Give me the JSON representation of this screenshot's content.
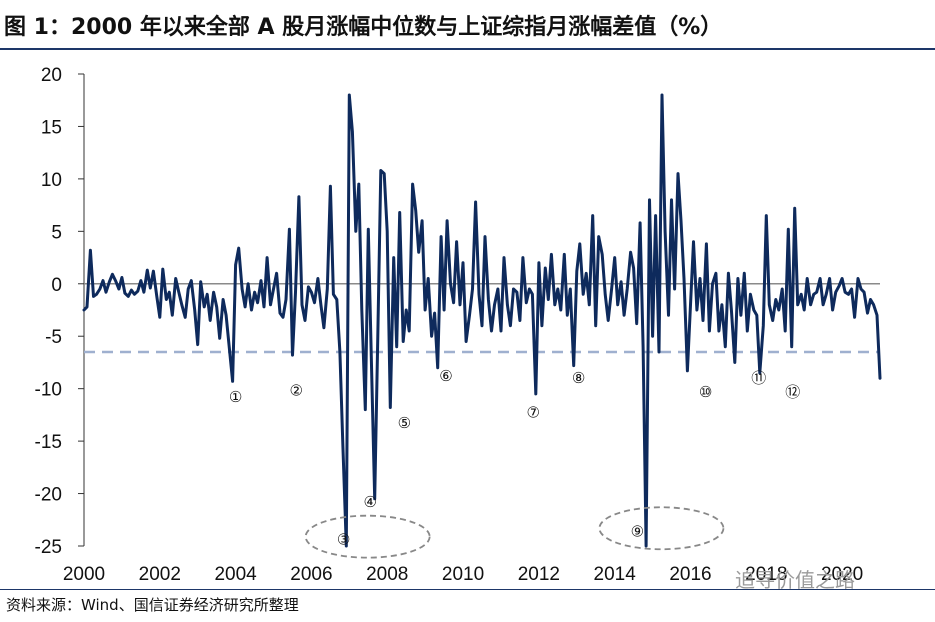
{
  "title": "图 1：2000 年以来全部 A 股月涨幅中位数与上证综指月涨幅差值（%）",
  "source": "资料来源：Wind、国信证券经济研究所整理",
  "watermark": "追寻价值之路",
  "colors": {
    "line": "#0e2a5c",
    "dashed": "#9fb0cf",
    "zero": "#8a8a8a",
    "ellipse": "#888888",
    "rule": "#1d3668"
  },
  "chart_data": {
    "type": "line",
    "title": "",
    "xlabel": "",
    "ylabel": "",
    "x_ticks": [
      "2000",
      "2002",
      "2004",
      "2006",
      "2008",
      "2010",
      "2012",
      "2014",
      "2016",
      "2018",
      "2020"
    ],
    "x_range": [
      2000.0,
      2021.0
    ],
    "y_ticks": [
      20,
      15,
      10,
      5,
      0,
      -5,
      -10,
      -15,
      -20,
      -25
    ],
    "ylim": [
      -25,
      20
    ],
    "grid": false,
    "reference_line": {
      "y": -6.5,
      "style": "dashed"
    },
    "series": [
      {
        "name": "",
        "points": [
          [
            2000.0,
            -2.5
          ],
          [
            2000.08,
            -2.2
          ],
          [
            2000.17,
            3.2
          ],
          [
            2000.25,
            -1.2
          ],
          [
            2000.33,
            -1.0
          ],
          [
            2000.42,
            -0.5
          ],
          [
            2000.5,
            0.3
          ],
          [
            2000.58,
            -0.8
          ],
          [
            2000.67,
            0.2
          ],
          [
            2000.75,
            0.9
          ],
          [
            2000.83,
            0.3
          ],
          [
            2000.92,
            -0.5
          ],
          [
            2001.0,
            0.6
          ],
          [
            2001.08,
            -0.9
          ],
          [
            2001.17,
            -1.2
          ],
          [
            2001.25,
            -0.6
          ],
          [
            2001.33,
            -1.0
          ],
          [
            2001.42,
            -0.7
          ],
          [
            2001.5,
            0.3
          ],
          [
            2001.58,
            -0.8
          ],
          [
            2001.67,
            1.3
          ],
          [
            2001.75,
            -0.4
          ],
          [
            2001.83,
            1.2
          ],
          [
            2001.92,
            -1.2
          ],
          [
            2002.0,
            -3.2
          ],
          [
            2002.08,
            1.4
          ],
          [
            2002.17,
            -1.5
          ],
          [
            2002.25,
            -0.8
          ],
          [
            2002.33,
            -3.0
          ],
          [
            2002.42,
            0.5
          ],
          [
            2002.5,
            -0.8
          ],
          [
            2002.58,
            -2.0
          ],
          [
            2002.67,
            -3.2
          ],
          [
            2002.75,
            -0.5
          ],
          [
            2002.83,
            0.3
          ],
          [
            2002.92,
            -2.5
          ],
          [
            2003.0,
            -5.8
          ],
          [
            2003.08,
            0.2
          ],
          [
            2003.17,
            -2.2
          ],
          [
            2003.25,
            -1.0
          ],
          [
            2003.33,
            -3.5
          ],
          [
            2003.42,
            -0.8
          ],
          [
            2003.5,
            -2.2
          ],
          [
            2003.58,
            -5.2
          ],
          [
            2003.67,
            -1.5
          ],
          [
            2003.75,
            -3.0
          ],
          [
            2003.83,
            -6.0
          ],
          [
            2003.92,
            -9.3
          ],
          [
            2004.0,
            1.8
          ],
          [
            2004.08,
            3.4
          ],
          [
            2004.17,
            -0.5
          ],
          [
            2004.25,
            -2.2
          ],
          [
            2004.33,
            0.0
          ],
          [
            2004.42,
            -2.5
          ],
          [
            2004.5,
            -0.8
          ],
          [
            2004.58,
            -1.8
          ],
          [
            2004.67,
            0.3
          ],
          [
            2004.75,
            -2.2
          ],
          [
            2004.83,
            2.5
          ],
          [
            2004.92,
            -2.0
          ],
          [
            2005.0,
            -0.5
          ],
          [
            2005.08,
            1.0
          ],
          [
            2005.17,
            -2.8
          ],
          [
            2005.25,
            -3.2
          ],
          [
            2005.33,
            -1.5
          ],
          [
            2005.42,
            5.2
          ],
          [
            2005.5,
            -6.8
          ],
          [
            2005.58,
            -0.8
          ],
          [
            2005.67,
            8.3
          ],
          [
            2005.75,
            -2.0
          ],
          [
            2005.83,
            -3.5
          ],
          [
            2005.92,
            -0.3
          ],
          [
            2006.0,
            -0.8
          ],
          [
            2006.08,
            -1.8
          ],
          [
            2006.17,
            0.5
          ],
          [
            2006.25,
            -2.0
          ],
          [
            2006.33,
            -4.2
          ],
          [
            2006.42,
            -0.5
          ],
          [
            2006.5,
            9.3
          ],
          [
            2006.58,
            -1.0
          ],
          [
            2006.67,
            -1.5
          ],
          [
            2006.75,
            -6.5
          ],
          [
            2006.83,
            -15.5
          ],
          [
            2006.92,
            -25.0
          ],
          [
            2007.0,
            18.0
          ],
          [
            2007.08,
            14.5
          ],
          [
            2007.17,
            5.0
          ],
          [
            2007.25,
            9.5
          ],
          [
            2007.33,
            -2.5
          ],
          [
            2007.42,
            -12.0
          ],
          [
            2007.5,
            5.2
          ],
          [
            2007.58,
            -7.0
          ],
          [
            2007.67,
            -20.5
          ],
          [
            2007.75,
            -5.0
          ],
          [
            2007.83,
            10.8
          ],
          [
            2007.92,
            10.5
          ],
          [
            2008.0,
            5.0
          ],
          [
            2008.08,
            -11.8
          ],
          [
            2008.17,
            2.5
          ],
          [
            2008.25,
            -6.0
          ],
          [
            2008.33,
            6.8
          ],
          [
            2008.42,
            -5.5
          ],
          [
            2008.5,
            -2.5
          ],
          [
            2008.58,
            -4.5
          ],
          [
            2008.67,
            9.5
          ],
          [
            2008.75,
            7.0
          ],
          [
            2008.83,
            3.0
          ],
          [
            2008.92,
            6.0
          ],
          [
            2009.0,
            -2.5
          ],
          [
            2009.08,
            0.5
          ],
          [
            2009.17,
            -5.0
          ],
          [
            2009.25,
            -2.8
          ],
          [
            2009.33,
            -8.0
          ],
          [
            2009.42,
            4.5
          ],
          [
            2009.5,
            -2.5
          ],
          [
            2009.58,
            6.0
          ],
          [
            2009.67,
            0.0
          ],
          [
            2009.75,
            -1.8
          ],
          [
            2009.83,
            4.0
          ],
          [
            2009.92,
            -2.0
          ],
          [
            2010.0,
            2.0
          ],
          [
            2010.08,
            -5.5
          ],
          [
            2010.17,
            -3.0
          ],
          [
            2010.25,
            -0.5
          ],
          [
            2010.33,
            7.8
          ],
          [
            2010.42,
            -1.0
          ],
          [
            2010.5,
            -4.0
          ],
          [
            2010.58,
            4.5
          ],
          [
            2010.67,
            -1.5
          ],
          [
            2010.75,
            -4.5
          ],
          [
            2010.83,
            -2.0
          ],
          [
            2010.92,
            -0.5
          ],
          [
            2011.0,
            -4.5
          ],
          [
            2011.08,
            2.5
          ],
          [
            2011.17,
            -2.0
          ],
          [
            2011.25,
            -4.0
          ],
          [
            2011.33,
            -0.5
          ],
          [
            2011.42,
            -0.8
          ],
          [
            2011.5,
            -3.5
          ],
          [
            2011.58,
            2.5
          ],
          [
            2011.67,
            -1.8
          ],
          [
            2011.75,
            -0.5
          ],
          [
            2011.83,
            -1.0
          ],
          [
            2011.92,
            -10.5
          ],
          [
            2012.0,
            2.0
          ],
          [
            2012.08,
            -4.0
          ],
          [
            2012.17,
            1.5
          ],
          [
            2012.25,
            -1.5
          ],
          [
            2012.33,
            2.8
          ],
          [
            2012.42,
            -2.0
          ],
          [
            2012.5,
            -0.5
          ],
          [
            2012.58,
            -2.5
          ],
          [
            2012.67,
            2.8
          ],
          [
            2012.75,
            -3.0
          ],
          [
            2012.83,
            -0.5
          ],
          [
            2012.92,
            -7.8
          ],
          [
            2013.0,
            1.2
          ],
          [
            2013.08,
            3.8
          ],
          [
            2013.17,
            -1.0
          ],
          [
            2013.25,
            1.0
          ],
          [
            2013.33,
            -2.0
          ],
          [
            2013.42,
            6.5
          ],
          [
            2013.5,
            -4.0
          ],
          [
            2013.58,
            4.5
          ],
          [
            2013.67,
            2.8
          ],
          [
            2013.75,
            -1.0
          ],
          [
            2013.83,
            -3.5
          ],
          [
            2013.92,
            -0.5
          ],
          [
            2014.0,
            2.5
          ],
          [
            2014.08,
            -2.0
          ],
          [
            2014.17,
            0.2
          ],
          [
            2014.25,
            -3.0
          ],
          [
            2014.33,
            -0.5
          ],
          [
            2014.42,
            3.0
          ],
          [
            2014.5,
            1.5
          ],
          [
            2014.58,
            -3.8
          ],
          [
            2014.67,
            5.8
          ],
          [
            2014.75,
            -6.0
          ],
          [
            2014.83,
            -25.0
          ],
          [
            2014.92,
            8.0
          ],
          [
            2015.0,
            -5.0
          ],
          [
            2015.08,
            6.5
          ],
          [
            2015.17,
            -6.5
          ],
          [
            2015.25,
            18.0
          ],
          [
            2015.33,
            5.0
          ],
          [
            2015.42,
            -3.0
          ],
          [
            2015.5,
            8.0
          ],
          [
            2015.58,
            -0.5
          ],
          [
            2015.67,
            10.5
          ],
          [
            2015.75,
            6.0
          ],
          [
            2015.83,
            0.5
          ],
          [
            2015.92,
            -8.3
          ],
          [
            2016.0,
            -2.0
          ],
          [
            2016.08,
            4.0
          ],
          [
            2016.17,
            -2.5
          ],
          [
            2016.25,
            0.5
          ],
          [
            2016.33,
            -3.5
          ],
          [
            2016.42,
            3.8
          ],
          [
            2016.5,
            -4.5
          ],
          [
            2016.58,
            0.0
          ],
          [
            2016.67,
            1.0
          ],
          [
            2016.75,
            -4.5
          ],
          [
            2016.83,
            -2.0
          ],
          [
            2016.92,
            -6.0
          ],
          [
            2017.0,
            1.0
          ],
          [
            2017.08,
            -2.5
          ],
          [
            2017.17,
            -7.5
          ],
          [
            2017.25,
            0.5
          ],
          [
            2017.33,
            -3.0
          ],
          [
            2017.42,
            1.0
          ],
          [
            2017.5,
            -4.5
          ],
          [
            2017.58,
            -1.0
          ],
          [
            2017.67,
            -2.5
          ],
          [
            2017.75,
            -3.0
          ],
          [
            2017.83,
            -8.5
          ],
          [
            2017.92,
            -4.0
          ],
          [
            2018.0,
            6.5
          ],
          [
            2018.08,
            -2.0
          ],
          [
            2018.17,
            -3.5
          ],
          [
            2018.25,
            -1.5
          ],
          [
            2018.33,
            -2.5
          ],
          [
            2018.42,
            -0.5
          ],
          [
            2018.5,
            -4.5
          ],
          [
            2018.58,
            5.2
          ],
          [
            2018.67,
            -6.0
          ],
          [
            2018.75,
            7.2
          ],
          [
            2018.83,
            -2.0
          ],
          [
            2018.92,
            -1.0
          ],
          [
            2019.0,
            -2.5
          ],
          [
            2019.08,
            0.5
          ],
          [
            2019.17,
            -2.0
          ],
          [
            2019.25,
            -1.0
          ],
          [
            2019.33,
            -0.8
          ],
          [
            2019.42,
            0.5
          ],
          [
            2019.5,
            -2.0
          ],
          [
            2019.58,
            -1.0
          ],
          [
            2019.67,
            0.5
          ],
          [
            2019.75,
            -2.5
          ],
          [
            2019.83,
            -0.8
          ],
          [
            2019.92,
            -0.2
          ],
          [
            2020.0,
            0.5
          ],
          [
            2020.08,
            -0.8
          ],
          [
            2020.17,
            -1.0
          ],
          [
            2020.25,
            -0.5
          ],
          [
            2020.33,
            -3.2
          ],
          [
            2020.42,
            0.5
          ],
          [
            2020.5,
            -0.5
          ],
          [
            2020.58,
            -0.8
          ],
          [
            2020.67,
            -2.8
          ],
          [
            2020.75,
            -1.5
          ],
          [
            2020.83,
            -2.0
          ],
          [
            2020.92,
            -3.0
          ],
          [
            2021.0,
            -9.0
          ]
        ]
      }
    ],
    "annotations": [
      {
        "label": "①",
        "x": 2004.0,
        "y": -10.7
      },
      {
        "label": "②",
        "x": 2005.6,
        "y": -10.1
      },
      {
        "label": "③",
        "x": 2006.85,
        "y": -24.3,
        "ellipse": true
      },
      {
        "label": "④",
        "x": 2007.55,
        "y": -20.7
      },
      {
        "label": "⑤",
        "x": 2008.45,
        "y": -13.2
      },
      {
        "label": "⑥",
        "x": 2009.55,
        "y": -8.7
      },
      {
        "label": "⑦",
        "x": 2011.85,
        "y": -12.2
      },
      {
        "label": "⑧",
        "x": 2013.05,
        "y": -8.9
      },
      {
        "label": "⑨",
        "x": 2014.6,
        "y": -23.5,
        "ellipse": true
      },
      {
        "label": "⑩",
        "x": 2016.4,
        "y": -10.2
      },
      {
        "label": "⑪",
        "x": 2017.8,
        "y": -8.9
      },
      {
        "label": "⑫",
        "x": 2018.7,
        "y": -10.2
      }
    ]
  }
}
